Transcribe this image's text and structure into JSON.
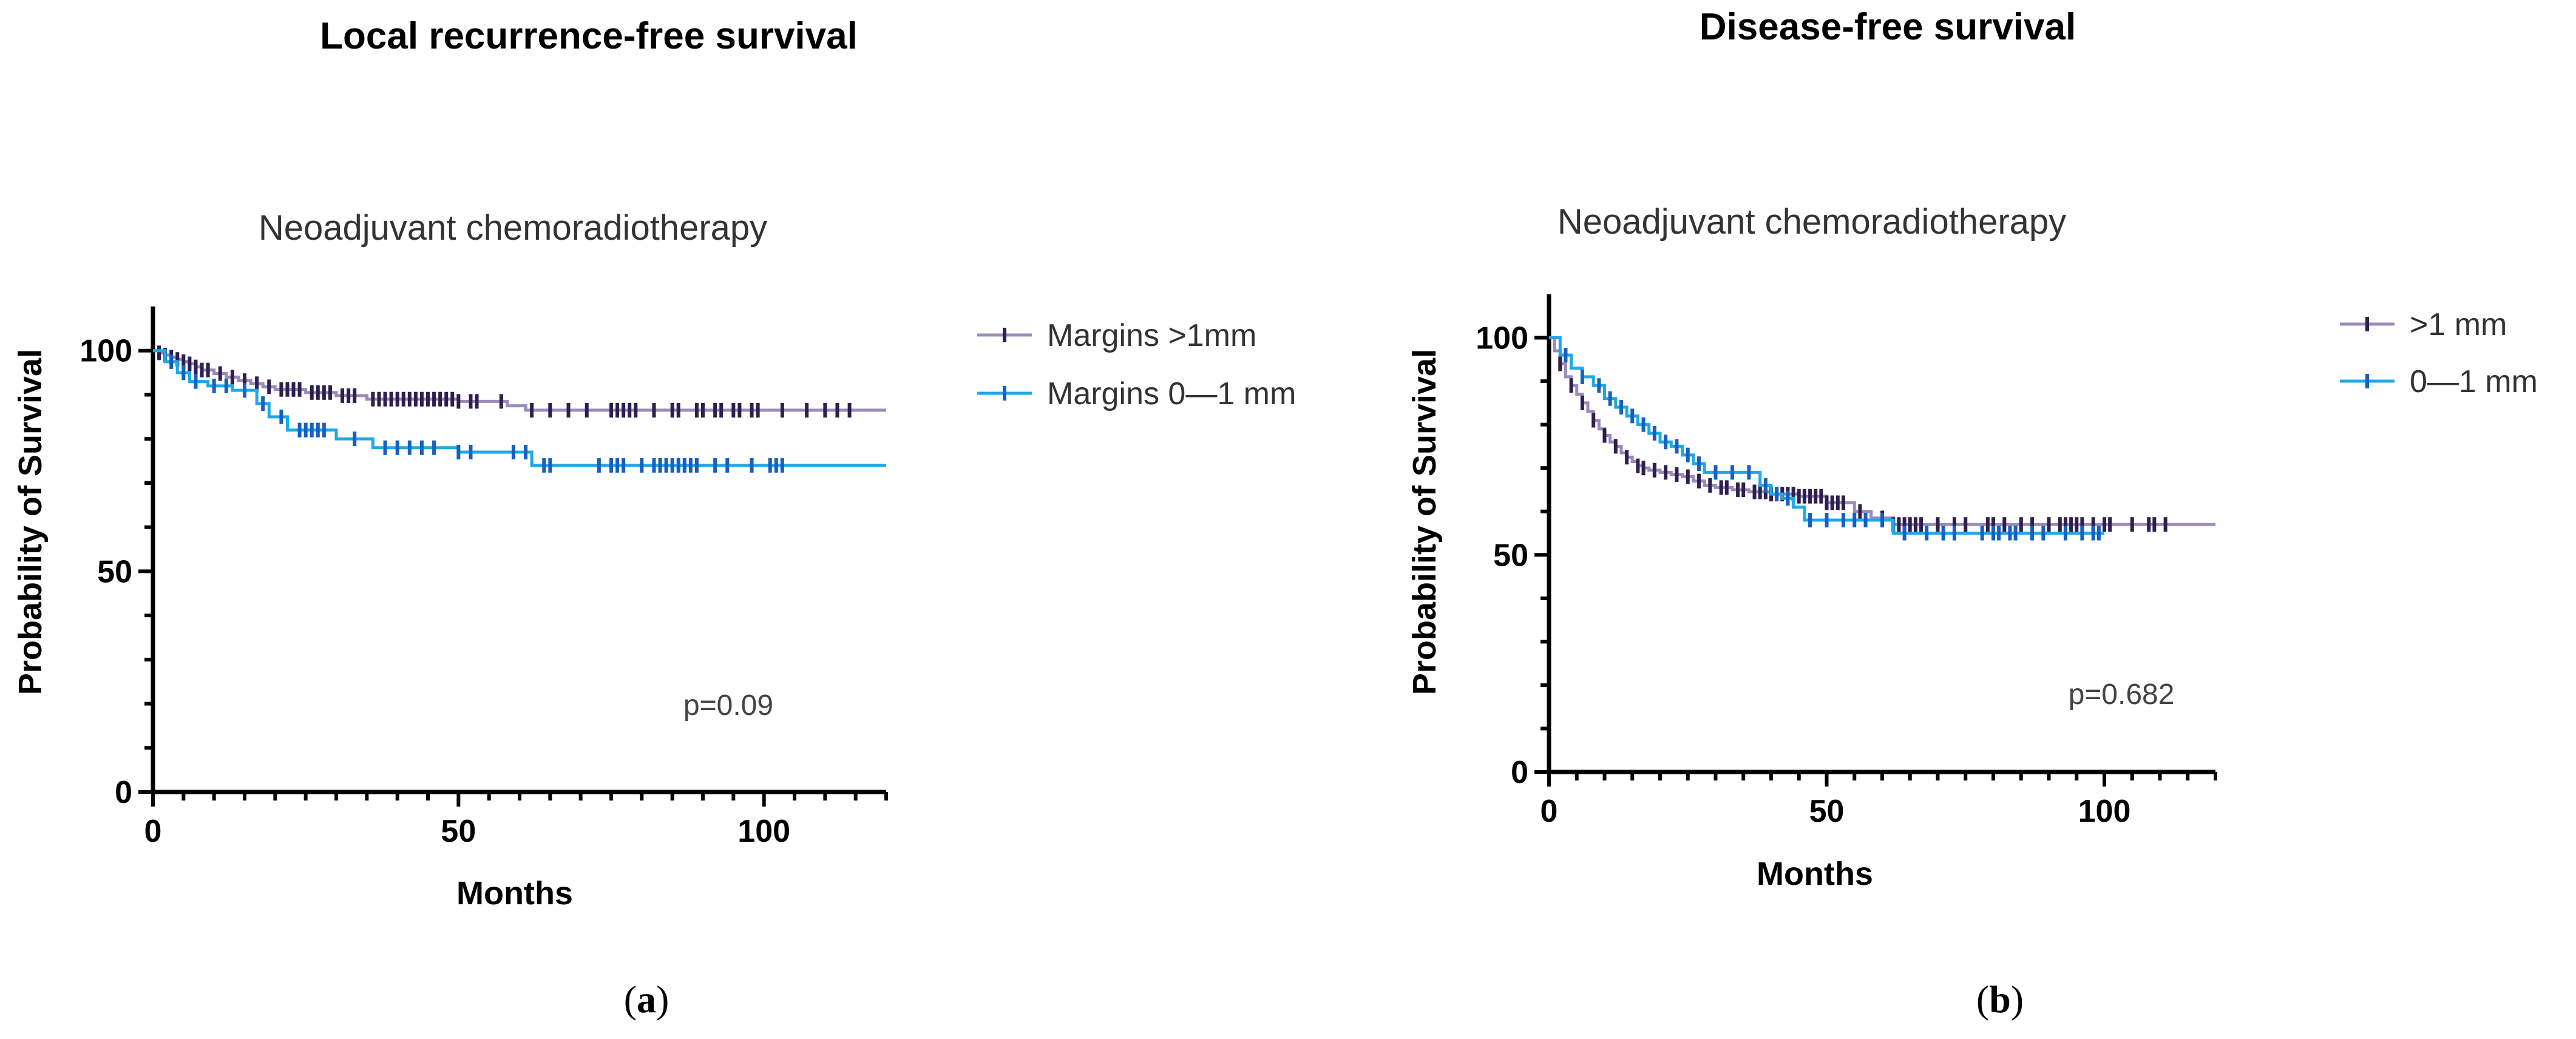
{
  "chart_data": [
    {
      "type": "line",
      "panel_title": "Local recurrence-free survival",
      "title": "Neoadjuvant chemoradiotherapy",
      "xlabel": "Months",
      "ylabel": "Probability of Survival",
      "xlim": [
        0,
        120
      ],
      "ylim": [
        0,
        110
      ],
      "xticks": [
        0,
        50,
        100
      ],
      "yticks": [
        0,
        50,
        100
      ],
      "annotation": "p=0.09",
      "panel_label": "a",
      "legend_position": "right",
      "series": [
        {
          "name": "Margins >1mm",
          "color": "#9b8bb8",
          "tick_color": "#2e1f4f",
          "steps": [
            [
              0,
              100
            ],
            [
              1,
              99.5
            ],
            [
              2,
              99
            ],
            [
              3,
              98.5
            ],
            [
              4,
              98
            ],
            [
              5,
              97.5
            ],
            [
              6,
              97
            ],
            [
              7,
              96.3
            ],
            [
              8,
              95.6
            ],
            [
              10,
              94.8
            ],
            [
              12,
              94
            ],
            [
              14,
              93.2
            ],
            [
              16,
              92.5
            ],
            [
              18,
              91.8
            ],
            [
              20,
              91.2
            ],
            [
              25,
              90.5
            ],
            [
              30,
              89.8
            ],
            [
              35,
              89
            ],
            [
              50,
              88.5
            ],
            [
              58,
              87.5
            ],
            [
              61,
              86.5
            ],
            [
              120,
              86.5
            ]
          ],
          "censored": [
            1,
            2,
            3,
            4,
            5,
            6,
            7,
            8,
            9,
            11,
            13,
            15,
            17,
            19,
            21,
            22,
            23,
            24,
            26,
            27,
            28,
            29,
            31,
            32,
            33,
            36,
            37,
            38,
            39,
            40,
            41,
            42,
            43,
            44,
            45,
            46,
            47,
            48,
            49,
            50,
            52,
            53,
            57,
            62,
            65,
            68,
            71,
            75,
            76,
            77,
            78,
            79,
            82,
            85,
            86,
            89,
            90,
            92,
            93,
            95,
            96,
            98,
            99,
            103,
            107,
            110,
            112,
            114
          ]
        },
        {
          "name": "Margins 0—1 mm",
          "color": "#1ea8e8",
          "tick_color": "#1560c0",
          "steps": [
            [
              0,
              100
            ],
            [
              2,
              97.5
            ],
            [
              4,
              95
            ],
            [
              6,
              93
            ],
            [
              9,
              92
            ],
            [
              13,
              91
            ],
            [
              17,
              88
            ],
            [
              19,
              85
            ],
            [
              22,
              82
            ],
            [
              25,
              82
            ],
            [
              30,
              80
            ],
            [
              36,
              78
            ],
            [
              50,
              77
            ],
            [
              62,
              74
            ],
            [
              120,
              74
            ]
          ],
          "censored": [
            3,
            5,
            7,
            10,
            12,
            15,
            18,
            21,
            24,
            25,
            26,
            27,
            28,
            33,
            38,
            40,
            42,
            44,
            46,
            50,
            52,
            59,
            61,
            64,
            65,
            73,
            75,
            76,
            77,
            80,
            82,
            83,
            84,
            85,
            86,
            87,
            88,
            89,
            92,
            94,
            98,
            101,
            102,
            103
          ]
        }
      ]
    },
    {
      "type": "line",
      "panel_title": "Disease-free survival",
      "title": "Neoadjuvant chemoradiotherapy",
      "xlabel": "Months",
      "ylabel": "Probability of Survival",
      "xlim": [
        0,
        120
      ],
      "ylim": [
        0,
        110
      ],
      "xticks": [
        0,
        50,
        100
      ],
      "yticks": [
        0,
        50,
        100
      ],
      "annotation": "p=0.682",
      "panel_label": "b",
      "legend_position": "right",
      "series": [
        {
          "name": ">1 mm",
          "color": "#9b8bb8",
          "tick_color": "#2e1f4f",
          "steps": [
            [
              0,
              100
            ],
            [
              1,
              97
            ],
            [
              2,
              94
            ],
            [
              3,
              91
            ],
            [
              4,
              89
            ],
            [
              5,
              87
            ],
            [
              6,
              85
            ],
            [
              7,
              83
            ],
            [
              8,
              81
            ],
            [
              9,
              79
            ],
            [
              10,
              77.5
            ],
            [
              11,
              76
            ],
            [
              12,
              75
            ],
            [
              13,
              73.5
            ],
            [
              14,
              72.5
            ],
            [
              15,
              71.5
            ],
            [
              16,
              70.5
            ],
            [
              17,
              70
            ],
            [
              18,
              69.5
            ],
            [
              20,
              69
            ],
            [
              22,
              68.5
            ],
            [
              24,
              68
            ],
            [
              26,
              67
            ],
            [
              28,
              66
            ],
            [
              30,
              65.5
            ],
            [
              33,
              65
            ],
            [
              36,
              64.5
            ],
            [
              40,
              64
            ],
            [
              45,
              63.5
            ],
            [
              50,
              62
            ],
            [
              55,
              60
            ],
            [
              58,
              58.5
            ],
            [
              62,
              57
            ],
            [
              120,
              57
            ]
          ],
          "censored": [
            2,
            4,
            6,
            8,
            10,
            12,
            14,
            16,
            17,
            19,
            21,
            23,
            25,
            27,
            29,
            31,
            32,
            34,
            35,
            37,
            38,
            39,
            40,
            41,
            42,
            43,
            44,
            45,
            46,
            47,
            48,
            49,
            50,
            51,
            52,
            53,
            56,
            60,
            62,
            63,
            64,
            65,
            66,
            67,
            70,
            73,
            75,
            79,
            80,
            82,
            85,
            87,
            90,
            92,
            93,
            94,
            95,
            96,
            98,
            100,
            101,
            105,
            108,
            109,
            111
          ]
        },
        {
          "name": "0—1 mm",
          "color": "#1ea8e8",
          "tick_color": "#1560c0",
          "steps": [
            [
              0,
              100
            ],
            [
              2,
              96
            ],
            [
              4,
              93
            ],
            [
              6,
              91
            ],
            [
              8,
              89
            ],
            [
              10,
              86
            ],
            [
              12,
              84
            ],
            [
              14,
              82
            ],
            [
              16,
              80
            ],
            [
              18,
              78
            ],
            [
              20,
              76
            ],
            [
              22,
              75
            ],
            [
              24,
              73
            ],
            [
              26,
              71
            ],
            [
              28,
              69
            ],
            [
              36,
              69
            ],
            [
              38,
              66
            ],
            [
              40,
              64
            ],
            [
              42,
              63
            ],
            [
              44,
              61
            ],
            [
              46,
              58
            ],
            [
              52,
              58
            ],
            [
              56,
              58
            ],
            [
              62,
              55
            ],
            [
              100,
              55
            ]
          ],
          "censored": [
            3,
            6,
            9,
            11,
            13,
            15,
            17,
            19,
            21,
            23,
            25,
            27,
            30,
            33,
            36,
            39,
            41,
            43,
            47,
            50,
            53,
            55,
            57,
            60,
            64,
            68,
            71,
            73,
            78,
            80,
            81,
            83,
            84,
            87,
            89,
            93,
            96,
            98,
            99
          ]
        }
      ]
    }
  ]
}
